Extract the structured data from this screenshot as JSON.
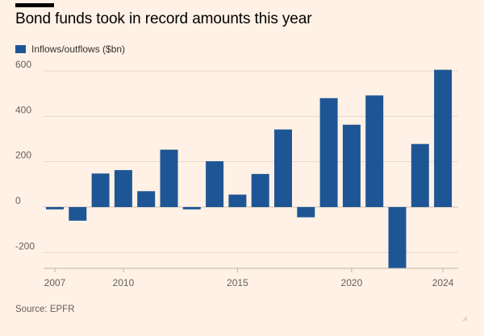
{
  "title": "Bond funds took in record amounts this year",
  "legend_label": "Inflows/outflows ($bn)",
  "source": "Source: EPFR",
  "colors": {
    "bar": "#1e5695",
    "background": "#fff1e5",
    "grid": "#e3d7cd",
    "axis_text": "#66605c"
  },
  "chart_data": {
    "type": "bar",
    "x": [
      2007,
      2008,
      2009,
      2010,
      2011,
      2012,
      2013,
      2014,
      2015,
      2016,
      2017,
      2018,
      2019,
      2020,
      2021,
      2022,
      2023,
      2024
    ],
    "series": [
      {
        "name": "Inflows/outflows ($bn)",
        "values": [
          -10,
          -60,
          148,
          163,
          70,
          253,
          -10,
          202,
          55,
          146,
          342,
          -45,
          480,
          363,
          492,
          -270,
          278,
          605
        ]
      }
    ],
    "x_tick_labels": [
      "2007",
      "2010",
      "2015",
      "2020",
      "2024"
    ],
    "y_ticks": [
      -200,
      0,
      200,
      400,
      600
    ],
    "ylim": [
      -270,
      620
    ],
    "grid": true,
    "legend_position": "top-left"
  }
}
